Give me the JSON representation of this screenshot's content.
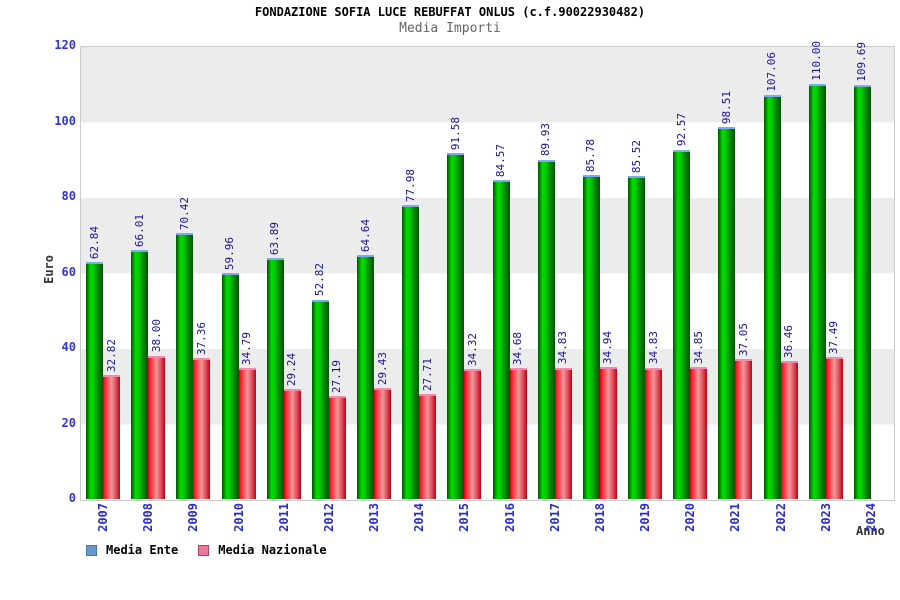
{
  "header": {
    "title": "FONDAZIONE SOFIA LUCE REBUFFAT ONLUS (c.f.90022930482)",
    "subtitle": "Media Importi"
  },
  "axes": {
    "ylabel": "Euro",
    "xlabel": "Anno"
  },
  "legend": {
    "items": [
      {
        "label": "Media Ente",
        "color": "#6699cc",
        "border": "#4477aa"
      },
      {
        "label": "Media Nazionale",
        "color": "#ee7799",
        "border": "#aa4466"
      }
    ]
  },
  "chart_data": {
    "type": "bar",
    "title": "FONDAZIONE SOFIA LUCE REBUFFAT ONLUS (c.f.90022930482)",
    "subtitle": "Media Importi",
    "xlabel": "Anno",
    "ylabel": "Euro",
    "ylim": [
      0,
      120
    ],
    "yticks": [
      0,
      20,
      40,
      60,
      80,
      100,
      120
    ],
    "grid": "alternating-horizontal-bands",
    "band_colors": [
      "#ececec",
      "#ffffff"
    ],
    "legend_position": "bottom-left",
    "tick_label_color": "#3333e6",
    "value_label_color": "#16169e",
    "categories": [
      "2007",
      "2008",
      "2009",
      "2010",
      "2011",
      "2012",
      "2013",
      "2014",
      "2015",
      "2016",
      "2017",
      "2018",
      "2019",
      "2020",
      "2021",
      "2022",
      "2023",
      "2024"
    ],
    "series": [
      {
        "name": "Media Ente",
        "gradient_stops": [
          "#005500 0%",
          "#00dd00 28%",
          "#00cc00 45%",
          "#008800 72%",
          "#005500 100%"
        ],
        "cap_color": "#7fa8f0",
        "values": [
          62.84,
          66.01,
          70.42,
          59.96,
          63.89,
          52.82,
          64.64,
          77.98,
          91.58,
          84.57,
          89.93,
          85.78,
          85.52,
          92.57,
          98.51,
          107.06,
          110.0,
          109.69
        ],
        "value_labels": [
          "62.84",
          "66.01",
          "70.42",
          "59.96",
          "63.89",
          "52.82",
          "64.64",
          "77.98",
          "91.58",
          "84.57",
          "89.93",
          "85.78",
          "85.52",
          "92.57",
          "98.51",
          "107.06",
          "110.00",
          "109.69"
        ]
      },
      {
        "name": "Media Nazionale",
        "gradient_stops": [
          "#cc0011 0%",
          "#ff2233 12%",
          "#ee9898 50%",
          "#e05060 75%",
          "#c00010 100%"
        ],
        "cap_color": "#f08ab4",
        "values": [
          32.82,
          38.0,
          37.36,
          34.79,
          29.24,
          27.19,
          29.43,
          27.71,
          34.32,
          34.68,
          34.83,
          34.94,
          34.83,
          34.85,
          37.05,
          36.46,
          37.49,
          null
        ],
        "value_labels": [
          "32.82",
          "38.00",
          "37.36",
          "34.79",
          "29.24",
          "27.19",
          "29.43",
          "27.71",
          "34.32",
          "34.68",
          "34.83",
          "34.94",
          "34.83",
          "34.85",
          "37.05",
          "36.46",
          "37.49",
          ""
        ]
      }
    ]
  }
}
